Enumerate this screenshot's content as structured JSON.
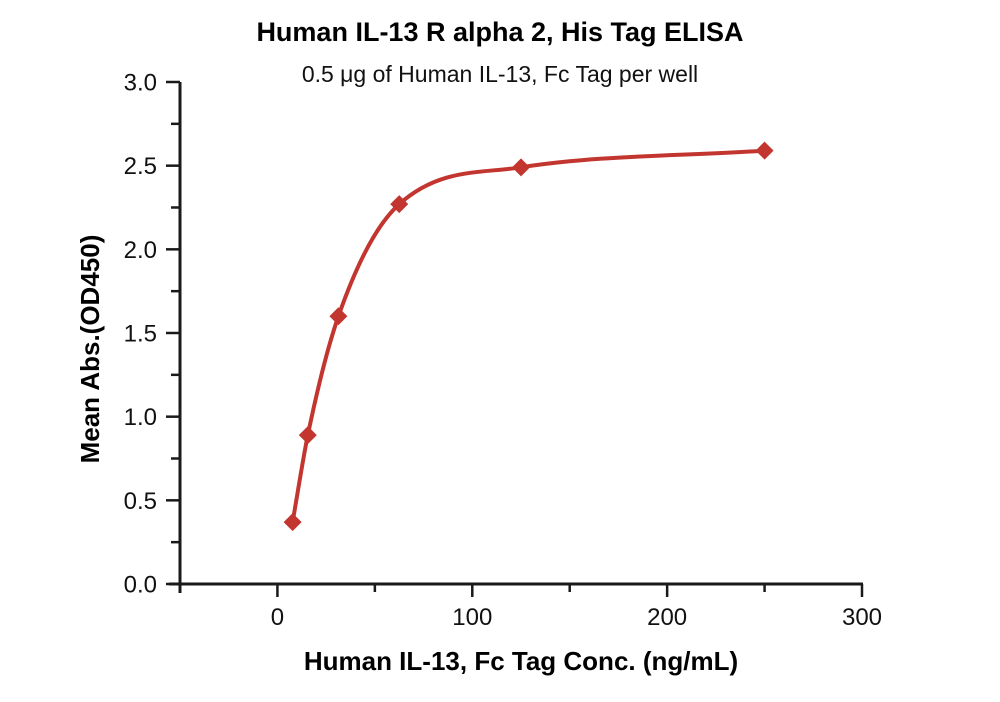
{
  "chart_data": {
    "type": "scatter",
    "title": "Human IL-13 R alpha 2, His Tag ELISA",
    "subtitle": "0.5 μg of Human IL-13, Fc Tag per well",
    "xlabel": "Human IL-13, Fc Tag Conc. (ng/mL)",
    "ylabel": "Mean Abs.(OD450)",
    "x": [
      7.8,
      15.6,
      31.3,
      62.5,
      125,
      250
    ],
    "y": [
      0.37,
      0.89,
      1.6,
      2.27,
      2.49,
      2.59
    ],
    "marker": "diamond",
    "line": "smooth-fit-through-points",
    "series_color": "#c2362f",
    "axis_color": "#1a1a1a",
    "text_color": "#111111",
    "xlim": [
      -50,
      300
    ],
    "ylim": [
      0,
      3
    ],
    "x_major_ticks": [
      0,
      100,
      200,
      300
    ],
    "x_minor_ticks": [
      50,
      150,
      250
    ],
    "y_major_ticks": [
      0,
      0.5,
      1,
      1.5,
      2,
      2.5,
      3
    ],
    "y_minor_ticks": [
      0.25,
      0.75,
      1.25,
      1.75,
      2.25,
      2.75
    ],
    "y_tick_decimals": 1,
    "grid": false,
    "legend": false
  }
}
